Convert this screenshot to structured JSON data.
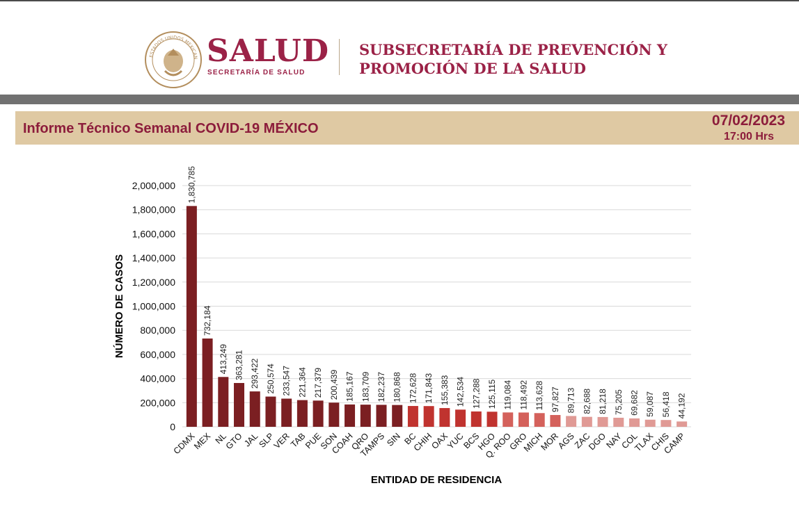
{
  "header": {
    "logo_word": "SALUD",
    "logo_sub": "SECRETARÍA DE SALUD",
    "seal_text": "ESTADOS UNIDOS MEXICANOS",
    "subtitle_line1": "SUBSECRETARÍA DE PREVENCIÓN Y",
    "subtitle_line2": "PROMOCIÓN DE LA SALUD",
    "brand_color": "#9b2247"
  },
  "report": {
    "title": "Informe Técnico Semanal COVID-19 MÉXICO",
    "date": "07/02/2023",
    "time": "17:00 Hrs",
    "bar_color": "#dfc9a3"
  },
  "chart_data": {
    "type": "bar",
    "ylabel": "NÚMERO DE CASOS",
    "xlabel": "ENTIDAD DE RESIDENCIA",
    "ylim": [
      0,
      2000000
    ],
    "yticks": [
      "0",
      "200,000",
      "400,000",
      "600,000",
      "800,000",
      "1,000,000",
      "1,200,000",
      "1,400,000",
      "1,600,000",
      "1,800,000",
      "2,000,000"
    ],
    "grid": true,
    "categories": [
      "CDMX",
      "MEX",
      "NL",
      "GTO",
      "JAL",
      "SLP",
      "VER",
      "TAB",
      "PUE",
      "SON",
      "COAH",
      "QRO",
      "TAMPS",
      "SIN",
      "BC",
      "CHIH",
      "OAX",
      "YUC",
      "BCS",
      "HGO",
      "Q. ROO",
      "GRO",
      "MICH",
      "MOR",
      "AGS",
      "ZAC",
      "DGO",
      "NAY",
      "COL",
      "TLAX",
      "CHIS",
      "CAMP"
    ],
    "values": [
      1830785,
      732184,
      413249,
      363281,
      293422,
      250574,
      233547,
      221364,
      217379,
      200439,
      185167,
      183709,
      182237,
      180868,
      172628,
      171843,
      155383,
      142534,
      127288,
      125115,
      119084,
      118492,
      113628,
      97827,
      89713,
      82688,
      81218,
      75205,
      69682,
      59087,
      56418,
      44192
    ],
    "value_labels": [
      "1,830,785",
      "732,184",
      "413,249",
      "363,281",
      "293,422",
      "250,574",
      "233,547",
      "221,364",
      "217,379",
      "200,439",
      "185,167",
      "183,709",
      "182,237",
      "180,868",
      "172,628",
      "171,843",
      "155,383",
      "142,534",
      "127,288",
      "125,115",
      "119,084",
      "118,492",
      "113,628",
      "97,827",
      "89,713",
      "82,688",
      "81,218",
      "75,205",
      "69,682",
      "59,087",
      "56,418",
      "44,192"
    ],
    "colors": [
      "#7b1f22",
      "#7b1f22",
      "#7b1f22",
      "#7b1f22",
      "#7b1f22",
      "#7b1f22",
      "#7b1f22",
      "#7b1f22",
      "#7b1f22",
      "#7b1f22",
      "#7b1f22",
      "#7b1f22",
      "#7b1f22",
      "#7b1f22",
      "#c0332f",
      "#c0332f",
      "#c0332f",
      "#c0332f",
      "#c0332f",
      "#c0332f",
      "#d4615b",
      "#d4615b",
      "#d4615b",
      "#d4615b",
      "#e09a95",
      "#e09a95",
      "#e09a95",
      "#e09a95",
      "#e09a95",
      "#e09a95",
      "#e09a95",
      "#e09a95"
    ]
  }
}
